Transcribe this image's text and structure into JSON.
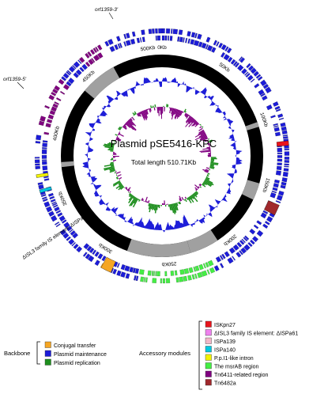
{
  "map": {
    "title": "Plasmid pSE5416-KPC",
    "subtitle": "Total length 510.71Kb",
    "ticks": [
      "0Kb",
      "50Kb",
      "100Kb",
      "150Kb",
      "200Kb",
      "250Kb",
      "300Kb",
      "350Kb",
      "400Kb",
      "450Kb",
      "500Kb"
    ],
    "outer_labels": [
      {
        "key": "orf1359_3",
        "text": "orf1359-3'"
      },
      {
        "key": "orf1359_5",
        "text": "orf1359-5'"
      },
      {
        "key": "isl3",
        "text": "ΔISL3 family IS element: ΔISPa61"
      }
    ]
  },
  "legend": {
    "backbone": {
      "title": "Backbone",
      "items": [
        {
          "label": "Conjugal transfer",
          "color": "#f5a623"
        },
        {
          "label": "Plasmid maintenance",
          "color": "#1c1cd8"
        },
        {
          "label": "Plasmid replication",
          "color": "#1f8f1f"
        }
      ]
    },
    "accessory": {
      "title": "Accessory modules",
      "items": [
        {
          "label": "ISKpn27",
          "color": "#e8141c"
        },
        {
          "label": "ΔISL3 family IS element: ΔISPa61",
          "color": "#ee82ee"
        },
        {
          "label": "ISPa139",
          "color": "#f2b7c8"
        },
        {
          "label": "ISPa140",
          "color": "#00c8e0"
        },
        {
          "label": "P.p.I1-like intron",
          "color": "#f3f300"
        },
        {
          "label": "The msrAB region",
          "color": "#44ee44"
        },
        {
          "label": "Tn6411-related region",
          "color": "#800080"
        },
        {
          "label": "Tn6482a",
          "color": "#a0282c"
        }
      ]
    }
  },
  "colors": {
    "backbone_ring": "#000000",
    "gap_ring": "#a0a0a0",
    "gc_content": "#1e1ed8",
    "gc_skew_positive": "#1f8f1f",
    "gc_skew_negative": "#800080",
    "feature_default": "#1c1cd8"
  }
}
